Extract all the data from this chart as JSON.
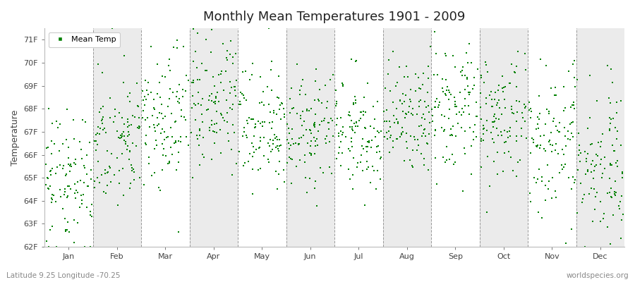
{
  "months": [
    "Jan",
    "Feb",
    "Mar",
    "Apr",
    "May",
    "Jun",
    "Jul",
    "Aug",
    "Sep",
    "Oct",
    "Nov",
    "Dec"
  ],
  "n_years": 109,
  "ylim": [
    62.0,
    71.5
  ],
  "yticks": [
    62,
    63,
    64,
    65,
    66,
    67,
    68,
    69,
    70,
    71
  ],
  "ytick_labels": [
    "62F",
    "63F",
    "64F",
    "65F",
    "66F",
    "67F",
    "68F",
    "69F",
    "70F",
    "71F"
  ],
  "title": "Monthly Mean Temperatures 1901 - 2009",
  "ylabel": "Temperature",
  "dot_color": "#008000",
  "dot_size": 3,
  "background_color": "#ffffff",
  "band_color_even": "#ffffff",
  "band_color_odd": "#ebebeb",
  "legend_label": "Mean Temp",
  "subtitle_left": "Latitude 9.25 Longitude -70.25",
  "subtitle_right": "worldspecies.org",
  "title_fontsize": 13,
  "axis_label_fontsize": 9,
  "tick_fontsize": 8,
  "subtitle_fontsize": 7.5,
  "month_means": [
    65.0,
    66.5,
    67.5,
    68.2,
    67.5,
    67.0,
    67.0,
    67.5,
    67.8,
    67.5,
    66.5,
    65.5
  ],
  "month_stds": [
    1.6,
    1.4,
    1.5,
    1.5,
    1.3,
    1.2,
    1.2,
    1.3,
    1.4,
    1.4,
    1.5,
    1.7
  ]
}
